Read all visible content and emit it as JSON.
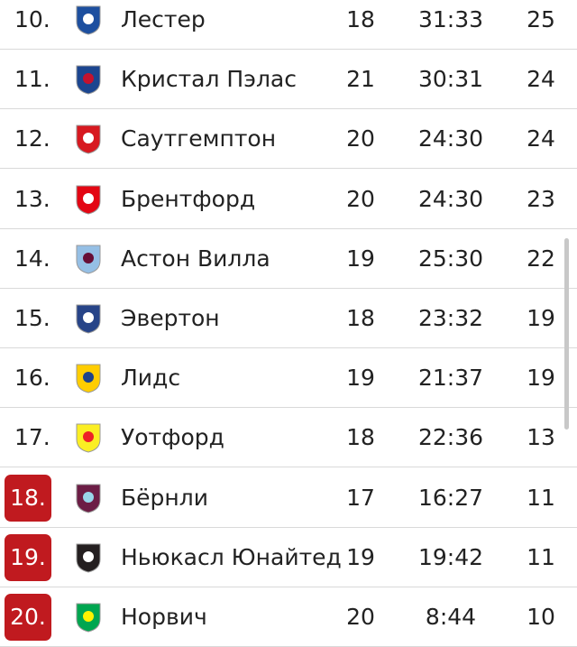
{
  "table": {
    "rows": [
      [
        "10.",
        "Лестер",
        18,
        "31:33",
        25
      ],
      [
        "11.",
        "Кристал Пэлас",
        21,
        "30:31",
        24
      ],
      [
        "12.",
        "Саутгемптон",
        20,
        "24:30",
        24
      ],
      [
        "13.",
        "Брентфорд",
        20,
        "24:30",
        23
      ],
      [
        "14.",
        "Астон Вилла",
        19,
        "25:30",
        22
      ],
      [
        "15.",
        "Эвертон",
        18,
        "23:32",
        19
      ],
      [
        "16.",
        "Лидс",
        19,
        "21:37",
        19
      ],
      [
        "17.",
        "Уотфорд",
        18,
        "22:36",
        13
      ],
      [
        "18.",
        "Бёрнли",
        17,
        "16:27",
        11
      ],
      [
        "19.",
        "Ньюкасл Юнайтед",
        19,
        "19:42",
        11
      ],
      [
        "20.",
        "Норвич",
        20,
        "8:44",
        10
      ]
    ]
  }
}
